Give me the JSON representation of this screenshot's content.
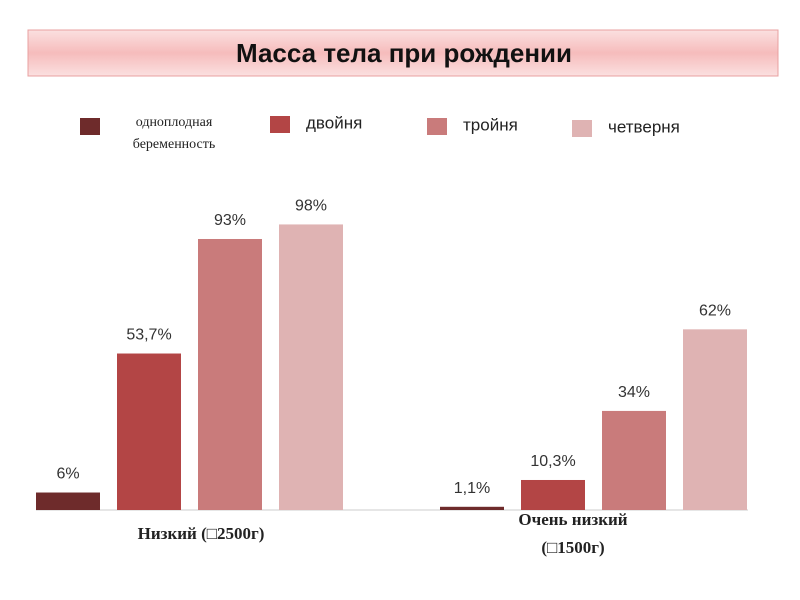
{
  "chart_data": {
    "type": "bar",
    "title": "Масса тела при рождении",
    "categories": [
      "Низкий (□2500г)",
      "Очень низкий (□1500г)"
    ],
    "ylim": [
      0,
      100
    ],
    "series": [
      {
        "name": "одноплодная беременность",
        "color": "#6e2b2b",
        "values": [
          6,
          1.1
        ],
        "value_labels": [
          "6%",
          "1,1%"
        ]
      },
      {
        "name": "двойня",
        "color": "#b34545",
        "values": [
          53.7,
          10.3
        ],
        "value_labels": [
          "53,7%",
          "10,3%"
        ]
      },
      {
        "name": "тройня",
        "color": "#c97b7b",
        "values": [
          93,
          34
        ],
        "value_labels": [
          "93%",
          "34%"
        ]
      },
      {
        "name": "четверня",
        "color": "#dfb3b3",
        "values": [
          98,
          62
        ],
        "value_labels": [
          "98%",
          "62%"
        ]
      }
    ]
  }
}
